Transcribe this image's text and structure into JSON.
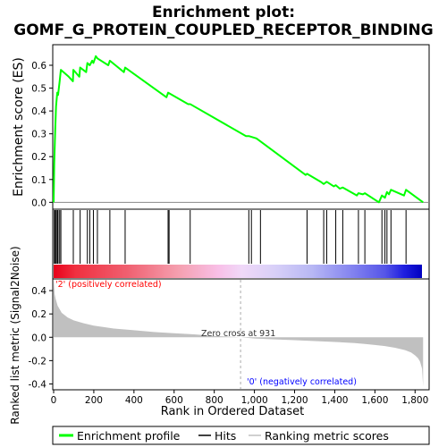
{
  "chart_data": {
    "type": "line",
    "title_line1": "Enrichment plot:",
    "title_line2": "GOMF_G_PROTEIN_COUPLED_RECEPTOR_BINDING",
    "es_ylabel": "Enrichment score (ES)",
    "metric_ylabel": "Ranked list metric (Signal2Noise)",
    "xlabel": "Rank in Ordered Dataset",
    "xlim": [
      0,
      1870
    ],
    "es_ylim": [
      -0.03,
      0.69
    ],
    "metric_ylim": [
      -0.45,
      0.5
    ],
    "x_ticks": [
      0,
      200,
      400,
      600,
      800,
      1000,
      1200,
      1400,
      1600,
      1800
    ],
    "x_tick_labels": [
      "0",
      "200",
      "400",
      "600",
      "800",
      "1,000",
      "1,200",
      "1,400",
      "1,600",
      "1,800"
    ],
    "es_ticks": [
      0.0,
      0.1,
      0.2,
      0.3,
      0.4,
      0.5,
      0.6
    ],
    "es_tick_labels": [
      "0.0",
      "0.1",
      "0.2",
      "0.3",
      "0.4",
      "0.5",
      "0.6"
    ],
    "metric_ticks": [
      -0.4,
      -0.2,
      0.0,
      0.2,
      0.4
    ],
    "metric_tick_labels": [
      "-0.4",
      "-0.2",
      "0.0",
      "0.2",
      "0.4"
    ],
    "enrichment_profile": {
      "name": "Enrichment profile",
      "color": "#00ff00",
      "x": [
        0,
        3,
        8,
        12,
        18,
        22,
        30,
        36,
        75,
        96,
        98,
        128,
        132,
        162,
        168,
        180,
        192,
        198,
        210,
        218,
        272,
        280,
        350,
        356,
        562,
        570,
        670,
        680,
        958,
        972,
        1010,
        1255,
        1262,
        1330,
        1345,
        1360,
        1395,
        1405,
        1425,
        1440,
        1510,
        1518,
        1540,
        1550,
        1620,
        1635,
        1650,
        1660,
        1670,
        1680,
        1745,
        1755,
        1840
      ],
      "y": [
        0.0,
        0.17,
        0.32,
        0.42,
        0.48,
        0.47,
        0.53,
        0.58,
        0.55,
        0.53,
        0.58,
        0.55,
        0.59,
        0.57,
        0.61,
        0.6,
        0.62,
        0.61,
        0.64,
        0.63,
        0.6,
        0.62,
        0.57,
        0.59,
        0.46,
        0.48,
        0.43,
        0.43,
        0.29,
        0.29,
        0.28,
        0.12,
        0.125,
        0.09,
        0.08,
        0.09,
        0.07,
        0.075,
        0.06,
        0.065,
        0.03,
        0.04,
        0.035,
        0.04,
        0.0,
        0.03,
        0.02,
        0.045,
        0.035,
        0.055,
        0.03,
        0.055,
        0.0
      ]
    },
    "hits": {
      "name": "Hits",
      "color": "#000000",
      "x": [
        3,
        8,
        12,
        18,
        22,
        30,
        36,
        98,
        132,
        168,
        180,
        198,
        218,
        280,
        356,
        570,
        575,
        680,
        972,
        985,
        1030,
        1262,
        1345,
        1360,
        1405,
        1440,
        1518,
        1550,
        1635,
        1650,
        1660,
        1680,
        1755
      ]
    },
    "ranking_metric": {
      "name": "Ranking metric scores",
      "color": "#c0c0c0",
      "x": [
        0,
        5,
        10,
        20,
        40,
        70,
        100,
        150,
        200,
        300,
        400,
        500,
        600,
        700,
        800,
        931,
        1000,
        1100,
        1200,
        1300,
        1400,
        1500,
        1550,
        1600,
        1650,
        1700,
        1750,
        1780,
        1800,
        1815,
        1825,
        1835,
        1840
      ],
      "y": [
        0.5,
        0.37,
        0.33,
        0.27,
        0.21,
        0.17,
        0.145,
        0.12,
        0.1,
        0.075,
        0.06,
        0.045,
        0.035,
        0.025,
        0.012,
        0.0,
        -0.01,
        -0.018,
        -0.025,
        -0.032,
        -0.04,
        -0.05,
        -0.057,
        -0.066,
        -0.076,
        -0.09,
        -0.11,
        -0.13,
        -0.155,
        -0.18,
        -0.21,
        -0.27,
        -0.42
      ]
    },
    "zero_cross_label": "Zero cross at 931",
    "zero_cross_x": 931,
    "positive_label": "'2' (positively correlated)",
    "negative_label": "'0' (negatively correlated)",
    "positive_color": "#ff0000",
    "negative_color": "#0000ff",
    "legend_placement": "bottom"
  }
}
